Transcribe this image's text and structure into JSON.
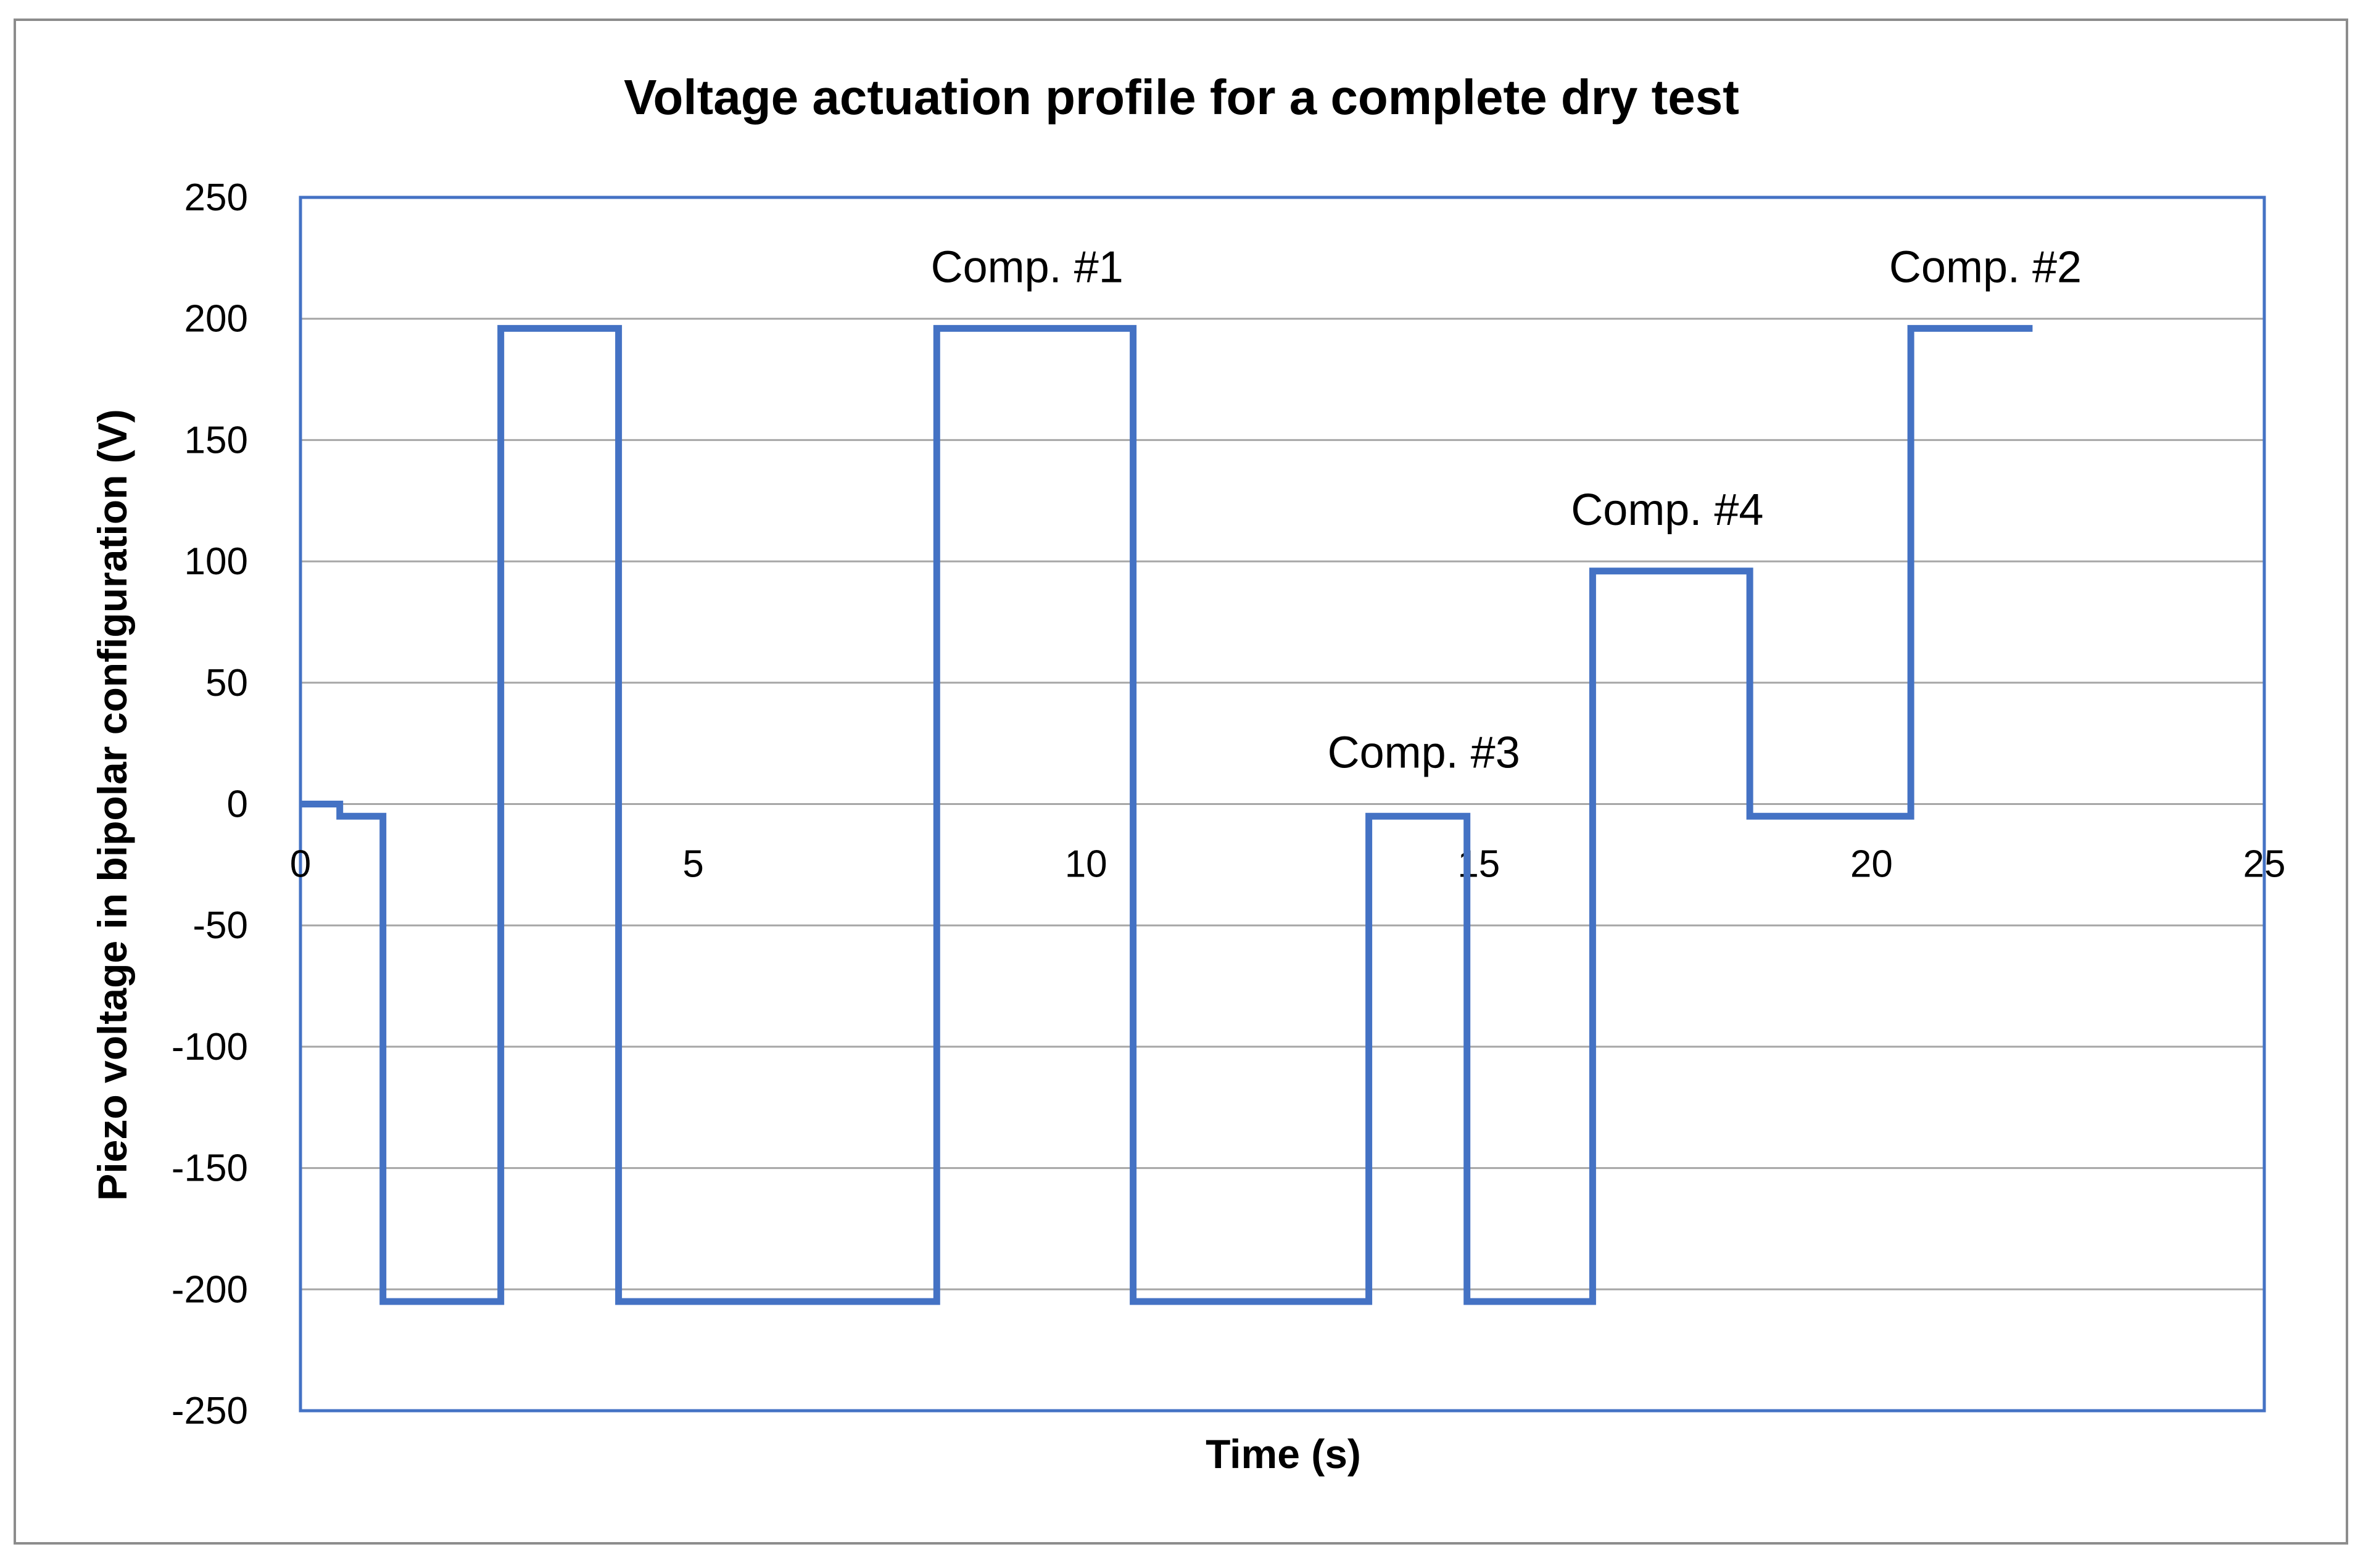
{
  "chart_data": {
    "type": "line",
    "title": "Voltage actuation profile for a complete dry test",
    "xlabel": "Time (s)",
    "ylabel": "Piezo voltage in bipolar configuration (V)",
    "xlim": [
      0,
      25
    ],
    "ylim": [
      -250,
      250
    ],
    "x_ticks": [
      0,
      5,
      10,
      15,
      20,
      25
    ],
    "y_ticks": [
      250,
      200,
      150,
      100,
      50,
      0,
      -50,
      -100,
      -150,
      -200,
      -250
    ],
    "grid": "horizontal",
    "legend": "none",
    "series": [
      {
        "color": "#4472C4",
        "x": [
          0,
          0.5,
          0.5,
          1.05,
          1.05,
          2.55,
          2.55,
          4.05,
          4.05,
          8.1,
          8.1,
          10.6,
          10.6,
          13.6,
          13.6,
          14.85,
          14.85,
          16.45,
          16.45,
          18.45,
          18.45,
          20.5,
          20.5,
          22.05
        ],
        "y": [
          0,
          0,
          -5,
          -5,
          -205,
          -205,
          196,
          196,
          -205,
          -205,
          196,
          196,
          -205,
          -205,
          -5,
          -5,
          -205,
          -205,
          96,
          96,
          -5,
          -5,
          196,
          196
        ]
      }
    ],
    "annotations": [
      {
        "text": "Comp. #1",
        "x": 9.25,
        "y": 215
      },
      {
        "text": "Comp. #2",
        "x": 21.45,
        "y": 215
      },
      {
        "text": "Comp. #3",
        "x": 14.3,
        "y": 15
      },
      {
        "text": "Comp. #4",
        "x": 17.4,
        "y": 115
      }
    ]
  }
}
